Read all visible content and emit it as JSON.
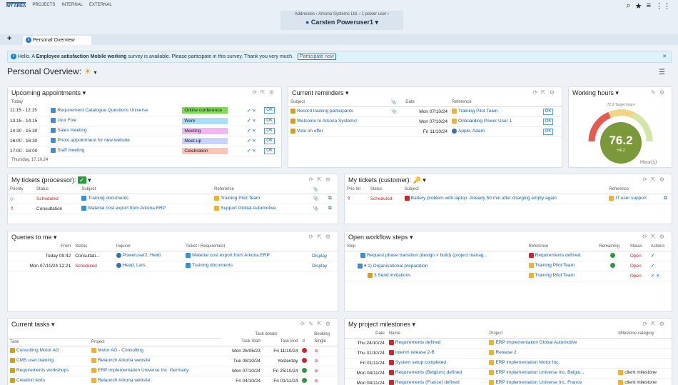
{
  "topnav": {
    "my_area": "MY AREA",
    "projects": "PROJECTS",
    "internal": "INTERNAL",
    "external": "EXTERNAL"
  },
  "user": {
    "crumbs": "Addresses  ›  Arkona Systems Ltd.  ›  1 power user  ›",
    "name": "Carsten Poweruser1"
  },
  "tab": {
    "label": "Personal Overview"
  },
  "banner": {
    "prefix": "Hello. A ",
    "strong": "Employee satisfaction Mobile working",
    "suffix": " survey is available. Please participate in this survey. Thank you very much.",
    "button": "Participate now"
  },
  "page": {
    "title": "Personal Overview:"
  },
  "appointments": {
    "title": "Upcoming appointments",
    "today": "Today",
    "footer": "Thursday, 17.10.24",
    "ok": "OK",
    "rows": [
      {
        "time": "11:15 - 12:15",
        "subject": "Requirement Catalogue Questions Universe",
        "cat": "Online conference",
        "color": "#7ed957"
      },
      {
        "time": "13:15 - 14:15",
        "subject": "Jour Fixe",
        "cat": "Work",
        "color": "#a9def9"
      },
      {
        "time": "14:30 - 15:30",
        "subject": "Sales meeting",
        "cat": "Meeting",
        "color": "#f3b6f3"
      },
      {
        "time": "16:00 - 16:30",
        "subject": "Photo appointment for new website",
        "cat": "Meet-up",
        "color": "#c9d3ff"
      },
      {
        "time": "17:00 - 18:00",
        "subject": "Staff meeting",
        "cat": "Celebration",
        "color": "#ffc2b4"
      }
    ]
  },
  "reminders": {
    "title": "Current reminders",
    "h_subject": "Subject",
    "h_date": "Date",
    "h_ref": "Reference",
    "ok": "OK",
    "rows": [
      {
        "subject": "Record training participants",
        "date": "Mon 07/10/24",
        "ref": "Training Pilot Team"
      },
      {
        "subject": "Welcome to Arkona Systems!",
        "date": "Mon 07/10/24",
        "ref": "Onboarding Power User 1"
      },
      {
        "subject": "Vote on offer",
        "date": "Fri 11/10/24",
        "ref": "Apple, Adam"
      }
    ]
  },
  "working": {
    "title": "Working hours",
    "target": "72.0 Target hours",
    "value": "76.2",
    "delta": "+4.2",
    "unit": "Hour(s)"
  },
  "ticket_proc": {
    "title": "My tickets (processor):",
    "h_prio": "Priority",
    "h_status": "Status",
    "h_subject": "Subject",
    "h_ref": "Reference",
    "rows": [
      {
        "status": "Scheduled",
        "subject": "Training documents",
        "ref": "Training Pilot Team"
      },
      {
        "status": "Consultation",
        "subject": "Material cost export from Arkona ERP",
        "ref": "Support Global Automotive"
      }
    ]
  },
  "ticket_cust": {
    "title": "My tickets (customer):",
    "h_prio": "Prio Int",
    "h_status": "Status",
    "h_subject": "Subject",
    "h_ref": "Reference",
    "rows": [
      {
        "status": "Scheduled",
        "subject": "Battery problem with laptop: Already 50 min after charging empty again",
        "ref": "IT user support"
      }
    ]
  },
  "queries": {
    "title": "Queries to me",
    "h_from": "From",
    "h_status": "Status",
    "h_inq": "Inquirer",
    "h_ticket": "Ticket / Requirement",
    "rows": [
      {
        "from": "Today 09:42",
        "status": "Consultati...",
        "inq": "Poweruser2, Heidi",
        "ticket": "Material cost export from Arkona ERP",
        "act": "Display"
      },
      {
        "from": "Mon 07/10/24 12:21",
        "status": "Scheduled",
        "inq": "Head, Lars",
        "ticket": "Training documents",
        "act": "Display"
      }
    ]
  },
  "workflow": {
    "title": "Open workflow steps",
    "h_step": "Step",
    "h_ref": "Reference",
    "h_rem": "Remaining",
    "h_status": "Status",
    "h_act": "Actions",
    "rows": [
      {
        "step": "Request phase transition (design > build) (project manag...",
        "ref": "Requirements defined",
        "status": "Open"
      },
      {
        "step": "1) Organisational preparation",
        "ref": "Training Pilot Team",
        "status": "Open"
      },
      {
        "step": "3 Send invitations",
        "ref": "Training Pilot Team",
        "status": "Open"
      }
    ]
  },
  "tasks": {
    "title": "Current tasks",
    "h_task": "Task",
    "h_project": "Project",
    "h_details": "Task details",
    "h_booking": "Booking",
    "h_start": "Task Start",
    "h_end": "Task End",
    "h_d": "d",
    "h_single": "Single",
    "rows": [
      {
        "task": "Consulting Motor AG",
        "project": "Motor AG - Consulting",
        "start": "Mon 26/06/23",
        "end": "Fri 11/10/24",
        "dot": "red"
      },
      {
        "task": "CMS user training",
        "project": "Relaunch Arkona website",
        "start": "Tue 08/10/24",
        "end": "Yesterday",
        "dot": "red"
      },
      {
        "task": "Requirements workshops",
        "project": "ERP implementation Universe Inc. Germany",
        "start": "Mon 07/10/24",
        "end": "Fri 25/10/24",
        "dot": "green"
      },
      {
        "task": "Creation texts",
        "project": "Relaunch Arkona website",
        "start": "Fri 04/10/24",
        "end": "Fri 01/11/24",
        "dot": "green"
      }
    ]
  },
  "milestones": {
    "title": "My project milestones",
    "h_date": "Date",
    "h_name": "Name",
    "h_project": "Project",
    "h_cat": "Milestone category",
    "rows": [
      {
        "date": "Thu 24/10/24",
        "name": "Requirements defined",
        "project": "ERP Implementation Global Automotive",
        "cat": ""
      },
      {
        "date": "Thu 31/10/24",
        "name": "Interim release 2-B",
        "project": "Release 2",
        "cat": ""
      },
      {
        "date": "Fri 01/11/24",
        "name": "System setup completed",
        "project": "ERP implementation Motor Inc.",
        "cat": ""
      },
      {
        "date": "Mon 04/11/24",
        "name": "Requirements (Belgium) defined",
        "project": "ERP implementation Universe Inc. Belgiu...",
        "cat": "client milestone"
      },
      {
        "date": "Mon 04/11/24",
        "name": "Requirements (France) defined",
        "project": "ERP implementation Universe Inc. France",
        "cat": "client milestone"
      }
    ]
  }
}
